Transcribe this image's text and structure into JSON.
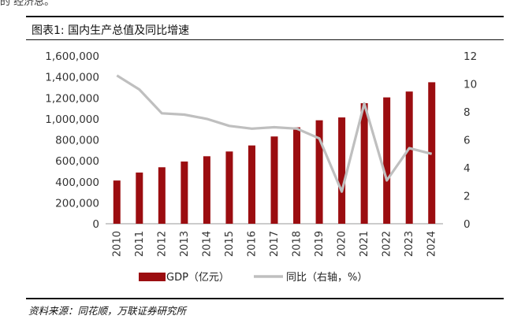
{
  "top_fragment": "的  经济总。",
  "figure_title": "图表1:  国内生产总值及同比增速",
  "source": "资料来源：同花顺，万联证券研究所",
  "chart_data": {
    "type": "bar+line",
    "categories": [
      "2010",
      "2011",
      "2012",
      "2013",
      "2014",
      "2015",
      "2016",
      "2017",
      "2018",
      "2019",
      "2020",
      "2021",
      "2022",
      "2023",
      "2024"
    ],
    "series": [
      {
        "name": "GDP（亿元）",
        "type": "bar",
        "axis": "left",
        "color": "#9b0d10",
        "values": [
          412119,
          487940,
          538580,
          592963,
          643563,
          688858,
          746395,
          832036,
          919281,
          986515,
          1013567,
          1149237,
          1204724,
          1260582,
          1349084
        ]
      },
      {
        "name": "同比（右轴，%）",
        "type": "line",
        "axis": "right",
        "color": "#bfbfbf",
        "values": [
          10.6,
          9.6,
          7.9,
          7.8,
          7.5,
          7.0,
          6.8,
          6.9,
          6.8,
          6.1,
          2.3,
          8.6,
          3.1,
          5.4,
          5.0
        ]
      }
    ],
    "y_left": {
      "min": 0,
      "max": 1600000,
      "ticks": [
        "0",
        "200,000",
        "400,000",
        "600,000",
        "800,000",
        "1,000,000",
        "1,200,000",
        "1,400,000",
        "1,600,000"
      ]
    },
    "y_right": {
      "min": 0,
      "max": 12,
      "ticks": [
        "0",
        "2",
        "4",
        "6",
        "8",
        "10",
        "12"
      ]
    },
    "legend_position": "bottom"
  }
}
